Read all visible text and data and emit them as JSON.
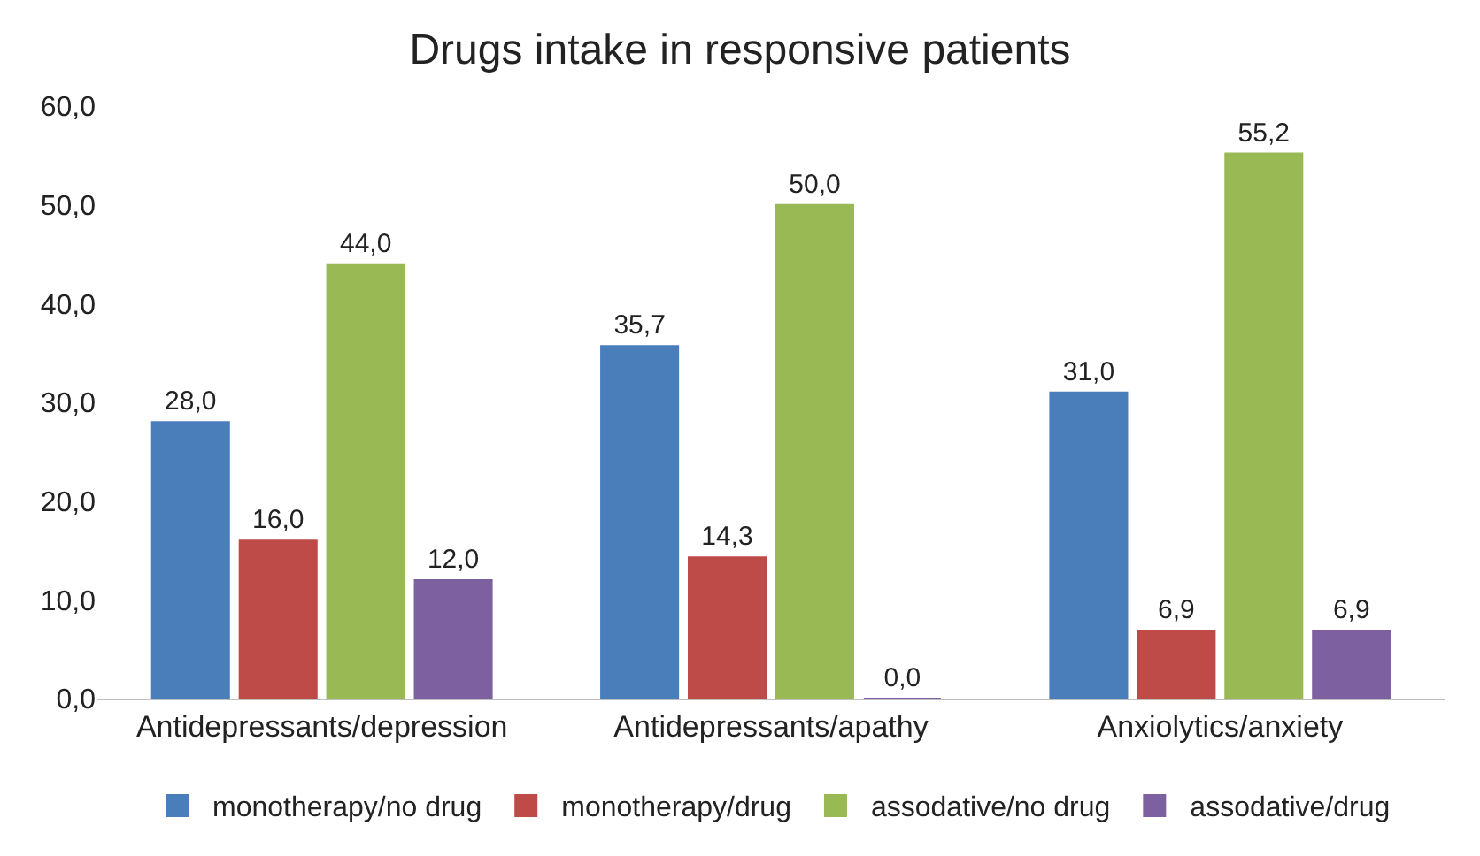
{
  "chart_data": {
    "type": "bar",
    "title": "Drugs intake in responsive patients",
    "categories": [
      "Antidepressants/depression",
      "Antidepressants/apathy",
      "Anxiolytics/anxiety"
    ],
    "series": [
      {
        "name": "monotherapy/no drug",
        "color": "#4a7ebb",
        "values": [
          28.0,
          35.7,
          31.0
        ],
        "value_labels": [
          "28,0",
          "35,7",
          "31,0"
        ]
      },
      {
        "name": "monotherapy/drug",
        "color": "#be4b48",
        "values": [
          16.0,
          14.3,
          6.9
        ],
        "value_labels": [
          "16,0",
          "14,3",
          "6,9"
        ]
      },
      {
        "name": "assodative/no drug",
        "color": "#98b954",
        "values": [
          44.0,
          50.0,
          55.2
        ],
        "value_labels": [
          "44,0",
          "50,0",
          "55,2"
        ]
      },
      {
        "name": "assodative/drug",
        "color": "#7d60a0",
        "values": [
          12.0,
          0.0,
          6.9
        ],
        "value_labels": [
          "12,0",
          "0,0",
          "6,9"
        ]
      }
    ],
    "ylim": [
      0,
      60
    ],
    "yticks": [
      {
        "value": 0,
        "label": "0,0"
      },
      {
        "value": 10,
        "label": "10,0"
      },
      {
        "value": 20,
        "label": "20,0"
      },
      {
        "value": 30,
        "label": "30,0"
      },
      {
        "value": 40,
        "label": "40,0"
      },
      {
        "value": 50,
        "label": "50,0"
      },
      {
        "value": 60,
        "label": "60,0"
      }
    ],
    "grid": false,
    "legend": "bottom"
  }
}
